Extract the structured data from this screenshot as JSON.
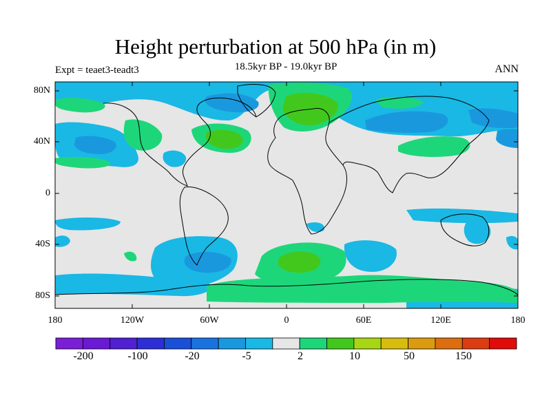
{
  "plot": {
    "title": "Height perturbation at 500 hPa (in m)",
    "subtitle": "18.5kyr BP - 19.0kyr BP",
    "left_label": "Expt = teaet3-teadt3",
    "right_label": "ANN"
  },
  "axes": {
    "x_ticks": [
      "180",
      "120W",
      "60W",
      "0",
      "60E",
      "120E",
      "180"
    ],
    "y_ticks": [
      "80N",
      "40N",
      "0",
      "40S",
      "80S"
    ]
  },
  "colorbar": {
    "colors": [
      "#7a1fd6",
      "#6a1ad4",
      "#5020d2",
      "#2d2fd6",
      "#1a4fd8",
      "#1a72e0",
      "#1a98de",
      "#1ab8e4",
      "#e6e6e6",
      "#1ed67a",
      "#42c81c",
      "#a8d615",
      "#d8bd10",
      "#dc9a10",
      "#dc6e10",
      "#dc3c12",
      "#e00b0b"
    ],
    "labels": [
      "-200",
      "-100",
      "-20",
      "-5",
      "2",
      "10",
      "50",
      "150"
    ]
  },
  "map_colors": {
    "background": "#e6e6e6",
    "light_blue": "#1ab8e4",
    "mid_blue": "#1a98de",
    "dark_blue": "#1a72e0",
    "green_light": "#1ed67a",
    "green_dark": "#42c81c",
    "coastline": "#000000"
  }
}
